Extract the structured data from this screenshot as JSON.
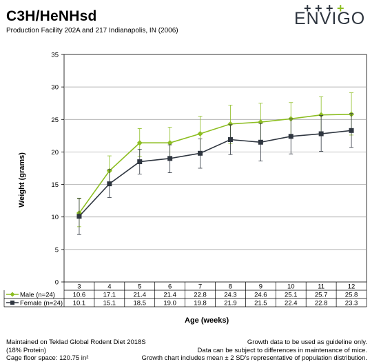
{
  "header": {
    "title": "C3H/HeNHsd",
    "subtitle": "Production Facility 202A and 217 Indianapolis, IN (2006)"
  },
  "logo": {
    "text": "ENVIGO",
    "plus_signs": [
      "+",
      "+",
      "+",
      "+"
    ],
    "text_color": "#2f3640",
    "plus_colors": [
      "#2f3640",
      "#2f3640",
      "#2f3640",
      "#8dbe22"
    ]
  },
  "footer": {
    "left": [
      "Maintained on Teklad Global Rodent Diet 2018S",
      "(18% Protein)",
      "Cage floor space: 120.75 in²"
    ],
    "right": [
      "Growth data to be used as guideline only.",
      "Data can be subject to differences in maintenance of mice.",
      "Growth chart includes mean ± 2 SD's representative of population distribution."
    ]
  },
  "chart_data": {
    "type": "line",
    "xlabel": "Age (weeks)",
    "ylabel": "Weight (grams)",
    "ylim": [
      0,
      35
    ],
    "yticks": [
      0,
      5,
      10,
      15,
      20,
      25,
      30,
      35
    ],
    "grid": true,
    "categories": [
      "3",
      "4",
      "5",
      "6",
      "7",
      "8",
      "9",
      "10",
      "11",
      "12"
    ],
    "series": [
      {
        "name": "Male (n=24)",
        "color": "#8dbe22",
        "marker": "diamond",
        "values": [
          10.6,
          17.1,
          21.4,
          21.4,
          22.8,
          24.3,
          24.6,
          25.1,
          25.7,
          25.8
        ],
        "error_low": [
          8.5,
          14.8,
          19.3,
          19.0,
          20.1,
          21.3,
          21.5,
          22.6,
          23.0,
          22.6
        ],
        "error_high": [
          12.8,
          19.4,
          23.6,
          23.8,
          25.5,
          27.2,
          27.5,
          27.6,
          28.5,
          29.1
        ]
      },
      {
        "name": "Female (n=24)",
        "color": "#2f3640",
        "marker": "square",
        "values": [
          10.1,
          15.1,
          18.5,
          19.0,
          19.8,
          21.9,
          21.5,
          22.4,
          22.8,
          23.3
        ],
        "error_low": [
          7.3,
          13.0,
          16.6,
          16.8,
          17.5,
          19.6,
          18.6,
          19.7,
          20.1,
          20.7
        ],
        "error_high": [
          12.9,
          17.3,
          20.4,
          21.1,
          22.0,
          24.2,
          24.4,
          25.1,
          25.6,
          25.9
        ]
      }
    ],
    "table_values_text": {
      "Male (n=24)": [
        "10.6",
        "17.1",
        "21.4",
        "21.4",
        "22.8",
        "24.3",
        "24.6",
        "25.1",
        "25.7",
        "25.8"
      ],
      "Female (n=24)": [
        "10.1",
        "15.1",
        "18.5",
        "19.0",
        "19.8",
        "21.9",
        "21.5",
        "22.4",
        "22.8",
        "23.3"
      ]
    }
  }
}
